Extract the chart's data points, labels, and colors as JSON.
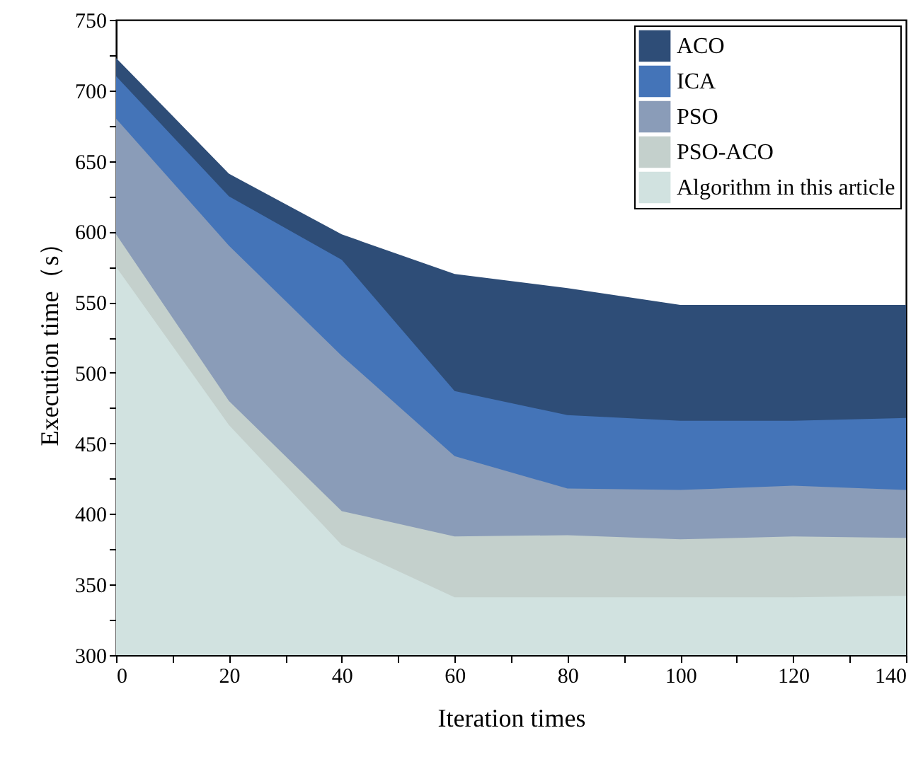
{
  "chart_data": {
    "type": "area",
    "xlabel": "Iteration times",
    "ylabel": "Execution time（s）",
    "x": [
      0,
      20,
      40,
      60,
      80,
      100,
      120,
      140
    ],
    "series": [
      {
        "name": "ACO",
        "color": "#2e4d77",
        "values": [
          723,
          641,
          598,
          570,
          560,
          548,
          548,
          548
        ]
      },
      {
        "name": "ICA",
        "color": "#4474b8",
        "values": [
          710,
          625,
          580,
          487,
          470,
          466,
          466,
          468
        ]
      },
      {
        "name": "PSO",
        "color": "#8a9cb8",
        "values": [
          680,
          590,
          512,
          441,
          418,
          417,
          420,
          417
        ]
      },
      {
        "name": "PSO-ACO",
        "color": "#c4d0cc",
        "values": [
          598,
          480,
          402,
          384,
          385,
          382,
          384,
          383
        ]
      },
      {
        "name": "Algorithm in this article",
        "color": "#d1e2e0",
        "values": [
          575,
          463,
          378,
          341,
          341,
          341,
          341,
          342
        ]
      }
    ],
    "xlim": [
      0,
      140
    ],
    "ylim": [
      300,
      750
    ],
    "xticks": [
      0,
      {
        "value": 10,
        "label": null
      },
      20,
      {
        "value": 30,
        "label": null
      },
      40,
      {
        "value": 50,
        "label": null
      },
      60,
      {
        "value": 70,
        "label": null
      },
      80,
      {
        "value": 90,
        "label": null
      },
      100,
      {
        "value": 110,
        "label": null
      },
      120,
      {
        "value": 130,
        "label": null
      },
      140
    ],
    "yticks": [
      300,
      {
        "value": 325,
        "label": null
      },
      350,
      {
        "value": 375,
        "label": null
      },
      400,
      {
        "value": 425,
        "label": null
      },
      450,
      {
        "value": 475,
        "label": null
      },
      500,
      {
        "value": 525,
        "label": null
      },
      550,
      {
        "value": 575,
        "label": null
      },
      600,
      {
        "value": 625,
        "label": null
      },
      650,
      {
        "value": 675,
        "label": null
      },
      700,
      {
        "value": 725,
        "label": null
      },
      750
    ],
    "legend": "top right",
    "grid": false
  }
}
